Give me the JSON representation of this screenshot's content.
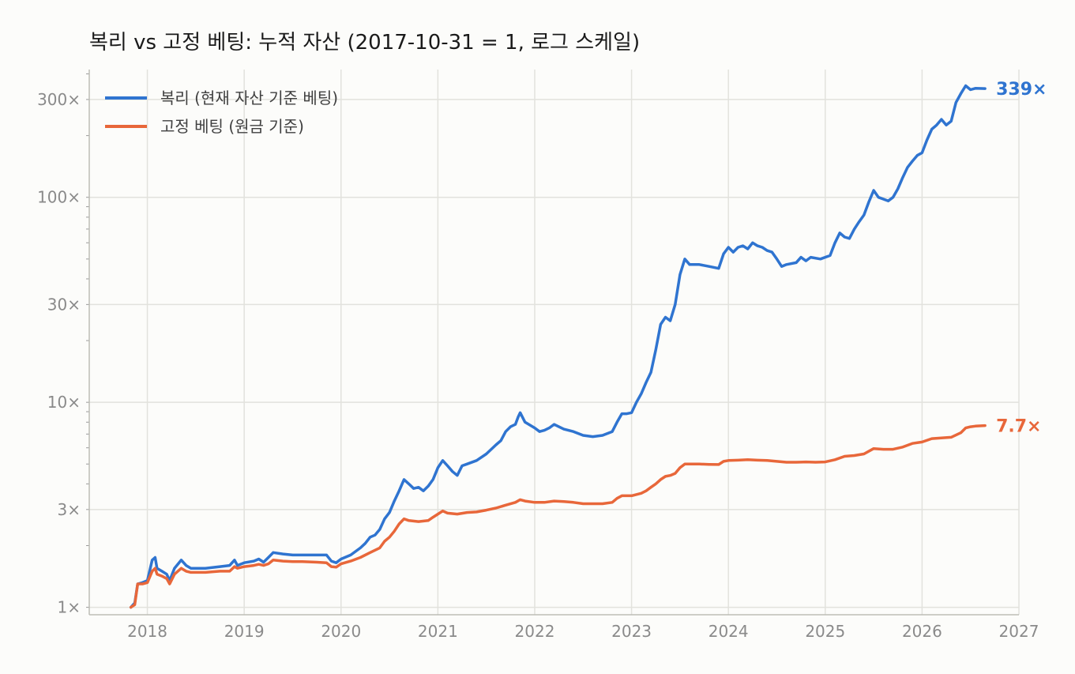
{
  "chart_data": {
    "type": "line",
    "title": "복리 vs 고정 베팅: 누적 자산 (2017-10-31 = 1, 로그 스케일)",
    "xlabel": "",
    "ylabel": "",
    "y_scale": "log",
    "ylim": [
      0.92,
      420
    ],
    "xlim": [
      2017.4,
      2027.0
    ],
    "x_ticks": [
      {
        "value": 2018,
        "label": "2018"
      },
      {
        "value": 2019,
        "label": "2019"
      },
      {
        "value": 2020,
        "label": "2020"
      },
      {
        "value": 2021,
        "label": "2021"
      },
      {
        "value": 2022,
        "label": "2022"
      },
      {
        "value": 2023,
        "label": "2023"
      },
      {
        "value": 2024,
        "label": "2024"
      },
      {
        "value": 2025,
        "label": "2025"
      },
      {
        "value": 2026,
        "label": "2026"
      },
      {
        "value": 2027,
        "label": "2027"
      }
    ],
    "y_ticks": [
      {
        "value": 1,
        "label": "1×"
      },
      {
        "value": 3,
        "label": "3×"
      },
      {
        "value": 10,
        "label": "10×"
      },
      {
        "value": 30,
        "label": "30×"
      },
      {
        "value": 100,
        "label": "100×"
      },
      {
        "value": 300,
        "label": "300×"
      }
    ],
    "grid": true,
    "legend_position": "top-left",
    "series": [
      {
        "name": "복리 (현재 자산 기준 베팅)",
        "color": "#2f74d0",
        "end_label": "339×",
        "points": [
          [
            2017.83,
            1.0
          ],
          [
            2017.87,
            1.05
          ],
          [
            2017.9,
            1.3
          ],
          [
            2017.95,
            1.32
          ],
          [
            2018.0,
            1.35
          ],
          [
            2018.05,
            1.7
          ],
          [
            2018.08,
            1.75
          ],
          [
            2018.1,
            1.55
          ],
          [
            2018.15,
            1.5
          ],
          [
            2018.2,
            1.45
          ],
          [
            2018.23,
            1.35
          ],
          [
            2018.28,
            1.55
          ],
          [
            2018.35,
            1.7
          ],
          [
            2018.4,
            1.6
          ],
          [
            2018.45,
            1.55
          ],
          [
            2018.6,
            1.55
          ],
          [
            2018.75,
            1.58
          ],
          [
            2018.85,
            1.6
          ],
          [
            2018.9,
            1.7
          ],
          [
            2018.93,
            1.6
          ],
          [
            2019.0,
            1.65
          ],
          [
            2019.1,
            1.68
          ],
          [
            2019.15,
            1.72
          ],
          [
            2019.2,
            1.66
          ],
          [
            2019.25,
            1.75
          ],
          [
            2019.3,
            1.85
          ],
          [
            2019.4,
            1.82
          ],
          [
            2019.5,
            1.8
          ],
          [
            2019.6,
            1.8
          ],
          [
            2019.75,
            1.8
          ],
          [
            2019.85,
            1.8
          ],
          [
            2019.9,
            1.68
          ],
          [
            2019.95,
            1.65
          ],
          [
            2020.0,
            1.72
          ],
          [
            2020.1,
            1.8
          ],
          [
            2020.2,
            1.95
          ],
          [
            2020.25,
            2.05
          ],
          [
            2020.3,
            2.2
          ],
          [
            2020.35,
            2.25
          ],
          [
            2020.4,
            2.4
          ],
          [
            2020.45,
            2.7
          ],
          [
            2020.5,
            2.9
          ],
          [
            2020.55,
            3.3
          ],
          [
            2020.6,
            3.7
          ],
          [
            2020.65,
            4.2
          ],
          [
            2020.7,
            4.0
          ],
          [
            2020.75,
            3.8
          ],
          [
            2020.8,
            3.85
          ],
          [
            2020.85,
            3.7
          ],
          [
            2020.9,
            3.9
          ],
          [
            2020.95,
            4.2
          ],
          [
            2021.0,
            4.8
          ],
          [
            2021.05,
            5.2
          ],
          [
            2021.1,
            4.9
          ],
          [
            2021.15,
            4.6
          ],
          [
            2021.2,
            4.4
          ],
          [
            2021.25,
            4.9
          ],
          [
            2021.3,
            5.0
          ],
          [
            2021.4,
            5.2
          ],
          [
            2021.5,
            5.6
          ],
          [
            2021.6,
            6.2
          ],
          [
            2021.65,
            6.5
          ],
          [
            2021.7,
            7.2
          ],
          [
            2021.75,
            7.6
          ],
          [
            2021.8,
            7.8
          ],
          [
            2021.83,
            8.5
          ],
          [
            2021.85,
            8.9
          ],
          [
            2021.9,
            8.0
          ],
          [
            2022.0,
            7.5
          ],
          [
            2022.05,
            7.2
          ],
          [
            2022.1,
            7.3
          ],
          [
            2022.15,
            7.5
          ],
          [
            2022.2,
            7.8
          ],
          [
            2022.25,
            7.6
          ],
          [
            2022.3,
            7.4
          ],
          [
            2022.4,
            7.2
          ],
          [
            2022.5,
            6.9
          ],
          [
            2022.6,
            6.8
          ],
          [
            2022.7,
            6.9
          ],
          [
            2022.8,
            7.2
          ],
          [
            2022.85,
            8.0
          ],
          [
            2022.9,
            8.8
          ],
          [
            2022.95,
            8.8
          ],
          [
            2023.0,
            8.9
          ],
          [
            2023.05,
            10.0
          ],
          [
            2023.1,
            11.0
          ],
          [
            2023.15,
            12.5
          ],
          [
            2023.2,
            14.0
          ],
          [
            2023.25,
            18.0
          ],
          [
            2023.3,
            24.0
          ],
          [
            2023.35,
            26.0
          ],
          [
            2023.4,
            25.0
          ],
          [
            2023.45,
            30.0
          ],
          [
            2023.5,
            42.0
          ],
          [
            2023.55,
            50.0
          ],
          [
            2023.6,
            47.0
          ],
          [
            2023.7,
            47.0
          ],
          [
            2023.8,
            46.0
          ],
          [
            2023.9,
            45.0
          ],
          [
            2023.95,
            53.0
          ],
          [
            2024.0,
            57.0
          ],
          [
            2024.05,
            54.0
          ],
          [
            2024.1,
            57.0
          ],
          [
            2024.15,
            58.0
          ],
          [
            2024.2,
            56.0
          ],
          [
            2024.25,
            60.0
          ],
          [
            2024.3,
            58.0
          ],
          [
            2024.35,
            57.0
          ],
          [
            2024.4,
            55.0
          ],
          [
            2024.45,
            54.0
          ],
          [
            2024.5,
            50.0
          ],
          [
            2024.55,
            46.0
          ],
          [
            2024.6,
            47.0
          ],
          [
            2024.7,
            48.0
          ],
          [
            2024.75,
            51.0
          ],
          [
            2024.8,
            49.0
          ],
          [
            2024.85,
            51.0
          ],
          [
            2024.95,
            50.0
          ],
          [
            2025.05,
            52.0
          ],
          [
            2025.1,
            60.0
          ],
          [
            2025.15,
            67.0
          ],
          [
            2025.2,
            64.0
          ],
          [
            2025.25,
            63.0
          ],
          [
            2025.3,
            70.0
          ],
          [
            2025.35,
            76.0
          ],
          [
            2025.4,
            82.0
          ],
          [
            2025.45,
            95.0
          ],
          [
            2025.5,
            108.0
          ],
          [
            2025.55,
            100.0
          ],
          [
            2025.6,
            98.0
          ],
          [
            2025.65,
            96.0
          ],
          [
            2025.7,
            100.0
          ],
          [
            2025.75,
            110.0
          ],
          [
            2025.8,
            125.0
          ],
          [
            2025.85,
            140.0
          ],
          [
            2025.9,
            150.0
          ],
          [
            2025.95,
            160.0
          ],
          [
            2026.0,
            165.0
          ],
          [
            2026.05,
            190.0
          ],
          [
            2026.1,
            215.0
          ],
          [
            2026.15,
            225.0
          ],
          [
            2026.2,
            240.0
          ],
          [
            2026.25,
            225.0
          ],
          [
            2026.3,
            235.0
          ],
          [
            2026.35,
            290.0
          ],
          [
            2026.4,
            320.0
          ],
          [
            2026.45,
            350.0
          ],
          [
            2026.5,
            335.0
          ],
          [
            2026.55,
            340.0
          ],
          [
            2026.65,
            339.0
          ]
        ]
      },
      {
        "name": "고정 베팅 (원금 기준)",
        "color": "#e8673a",
        "end_label": "7.7×",
        "points": [
          [
            2017.83,
            1.0
          ],
          [
            2017.87,
            1.03
          ],
          [
            2017.9,
            1.3
          ],
          [
            2017.95,
            1.3
          ],
          [
            2018.0,
            1.32
          ],
          [
            2018.05,
            1.5
          ],
          [
            2018.08,
            1.55
          ],
          [
            2018.1,
            1.45
          ],
          [
            2018.15,
            1.42
          ],
          [
            2018.2,
            1.38
          ],
          [
            2018.23,
            1.3
          ],
          [
            2018.28,
            1.45
          ],
          [
            2018.35,
            1.55
          ],
          [
            2018.4,
            1.5
          ],
          [
            2018.45,
            1.48
          ],
          [
            2018.6,
            1.48
          ],
          [
            2018.75,
            1.5
          ],
          [
            2018.85,
            1.5
          ],
          [
            2018.9,
            1.58
          ],
          [
            2018.93,
            1.55
          ],
          [
            2019.0,
            1.58
          ],
          [
            2019.1,
            1.6
          ],
          [
            2019.15,
            1.62
          ],
          [
            2019.2,
            1.6
          ],
          [
            2019.25,
            1.63
          ],
          [
            2019.3,
            1.7
          ],
          [
            2019.4,
            1.68
          ],
          [
            2019.5,
            1.67
          ],
          [
            2019.6,
            1.67
          ],
          [
            2019.75,
            1.66
          ],
          [
            2019.85,
            1.65
          ],
          [
            2019.9,
            1.58
          ],
          [
            2019.95,
            1.57
          ],
          [
            2020.0,
            1.63
          ],
          [
            2020.1,
            1.68
          ],
          [
            2020.2,
            1.75
          ],
          [
            2020.3,
            1.85
          ],
          [
            2020.4,
            1.95
          ],
          [
            2020.45,
            2.1
          ],
          [
            2020.5,
            2.2
          ],
          [
            2020.55,
            2.35
          ],
          [
            2020.6,
            2.55
          ],
          [
            2020.65,
            2.7
          ],
          [
            2020.7,
            2.65
          ],
          [
            2020.8,
            2.62
          ],
          [
            2020.9,
            2.65
          ],
          [
            2020.95,
            2.75
          ],
          [
            2021.0,
            2.85
          ],
          [
            2021.05,
            2.95
          ],
          [
            2021.1,
            2.88
          ],
          [
            2021.2,
            2.85
          ],
          [
            2021.3,
            2.9
          ],
          [
            2021.4,
            2.92
          ],
          [
            2021.5,
            2.98
          ],
          [
            2021.6,
            3.05
          ],
          [
            2021.7,
            3.15
          ],
          [
            2021.8,
            3.25
          ],
          [
            2021.85,
            3.35
          ],
          [
            2021.9,
            3.3
          ],
          [
            2022.0,
            3.25
          ],
          [
            2022.1,
            3.25
          ],
          [
            2022.2,
            3.3
          ],
          [
            2022.3,
            3.28
          ],
          [
            2022.4,
            3.25
          ],
          [
            2022.5,
            3.2
          ],
          [
            2022.6,
            3.2
          ],
          [
            2022.7,
            3.2
          ],
          [
            2022.8,
            3.25
          ],
          [
            2022.85,
            3.4
          ],
          [
            2022.9,
            3.5
          ],
          [
            2023.0,
            3.5
          ],
          [
            2023.1,
            3.6
          ],
          [
            2023.15,
            3.7
          ],
          [
            2023.2,
            3.85
          ],
          [
            2023.25,
            4.0
          ],
          [
            2023.3,
            4.2
          ],
          [
            2023.35,
            4.35
          ],
          [
            2023.4,
            4.4
          ],
          [
            2023.45,
            4.5
          ],
          [
            2023.5,
            4.8
          ],
          [
            2023.55,
            5.0
          ],
          [
            2023.6,
            5.0
          ],
          [
            2023.7,
            5.0
          ],
          [
            2023.8,
            4.98
          ],
          [
            2023.9,
            4.97
          ],
          [
            2023.95,
            5.15
          ],
          [
            2024.0,
            5.2
          ],
          [
            2024.1,
            5.22
          ],
          [
            2024.2,
            5.25
          ],
          [
            2024.3,
            5.22
          ],
          [
            2024.4,
            5.2
          ],
          [
            2024.5,
            5.15
          ],
          [
            2024.6,
            5.1
          ],
          [
            2024.7,
            5.1
          ],
          [
            2024.8,
            5.12
          ],
          [
            2024.9,
            5.1
          ],
          [
            2025.0,
            5.12
          ],
          [
            2025.1,
            5.25
          ],
          [
            2025.2,
            5.45
          ],
          [
            2025.3,
            5.5
          ],
          [
            2025.4,
            5.6
          ],
          [
            2025.5,
            5.95
          ],
          [
            2025.6,
            5.9
          ],
          [
            2025.7,
            5.9
          ],
          [
            2025.8,
            6.05
          ],
          [
            2025.9,
            6.3
          ],
          [
            2026.0,
            6.4
          ],
          [
            2026.1,
            6.65
          ],
          [
            2026.2,
            6.7
          ],
          [
            2026.3,
            6.75
          ],
          [
            2026.4,
            7.1
          ],
          [
            2026.45,
            7.5
          ],
          [
            2026.5,
            7.6
          ],
          [
            2026.55,
            7.65
          ],
          [
            2026.65,
            7.7
          ]
        ]
      }
    ]
  }
}
